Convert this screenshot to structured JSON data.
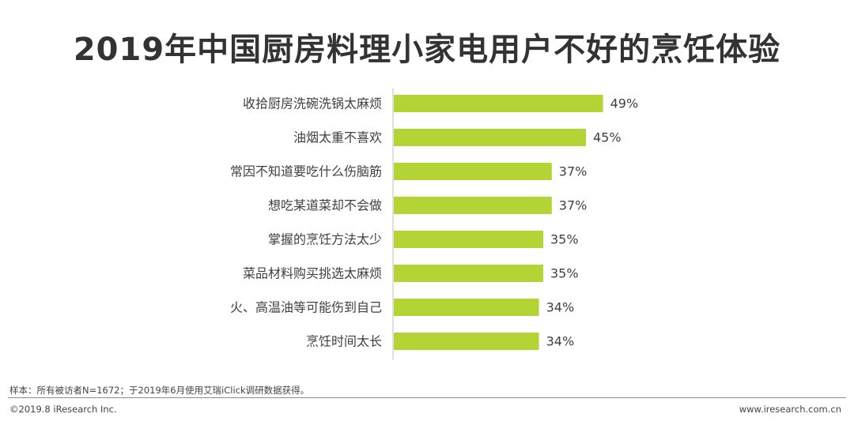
{
  "title": "2019年中国厨房料理小家电用户不好的烹饪体验",
  "chart_data": {
    "type": "bar",
    "orientation": "horizontal",
    "categories": [
      "收拾厨房洗碗洗锅太麻烦",
      "油烟太重不喜欢",
      "常因不知道要吃什么伤脑筋",
      "想吃某道菜却不会做",
      "掌握的烹饪方法太少",
      "菜品材料购买挑选太麻烦",
      "火、高温油等可能伤到自己",
      "烹饪时间太长"
    ],
    "values": [
      49,
      45,
      37,
      37,
      35,
      35,
      34,
      34
    ],
    "value_labels": [
      "49%",
      "45%",
      "37%",
      "37%",
      "35%",
      "35%",
      "34%",
      "34%"
    ],
    "unit": "%",
    "xlim": [
      0,
      100
    ],
    "bar_color": "#b4d335",
    "axis_color": "#bfbfbf"
  },
  "footer": {
    "note": "样本：所有被访者N=1672；于2019年6月使用艾瑞iClick调研数据获得。",
    "copyright": "©2019.8 iResearch Inc.",
    "website": "www.iresearch.com.cn"
  }
}
